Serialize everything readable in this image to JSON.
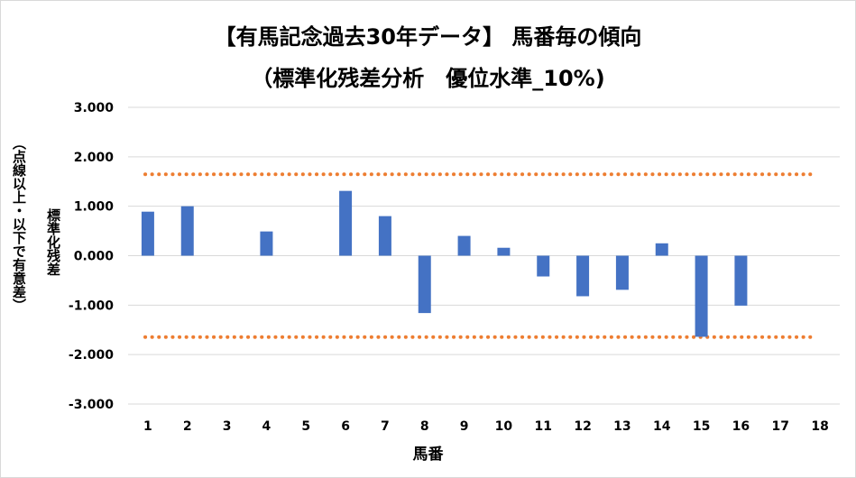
{
  "colors": {
    "bar": "#4472c4",
    "threshold": "#ed7d31",
    "grid": "#d9d9d9"
  },
  "chart_data": {
    "type": "bar",
    "title": "【有馬記念過去30年データ】 馬番毎の傾向",
    "subtitle": "（標準化残差分析　優位水準_10%)",
    "xlabel": "馬番",
    "ylabel": "標準化残差",
    "ylabel_note": "（点線以上・以下で有意差）",
    "categories": [
      "1",
      "2",
      "3",
      "4",
      "5",
      "6",
      "7",
      "8",
      "9",
      "10",
      "11",
      "12",
      "13",
      "14",
      "15",
      "16",
      "17",
      "18"
    ],
    "values": [
      0.89,
      1.0,
      0.0,
      0.49,
      0.0,
      1.31,
      0.8,
      -1.16,
      0.4,
      0.16,
      -0.42,
      -0.82,
      -0.69,
      0.25,
      -1.64,
      -1.01,
      0.0,
      0.0
    ],
    "ylim": [
      -3,
      3
    ],
    "yticks": [
      "3.000",
      "2.000",
      "1.000",
      "0.000",
      "-1.000",
      "-2.000",
      "-3.000"
    ],
    "thresholds": [
      1.645,
      -1.645
    ],
    "grid": true,
    "legend": "none"
  }
}
